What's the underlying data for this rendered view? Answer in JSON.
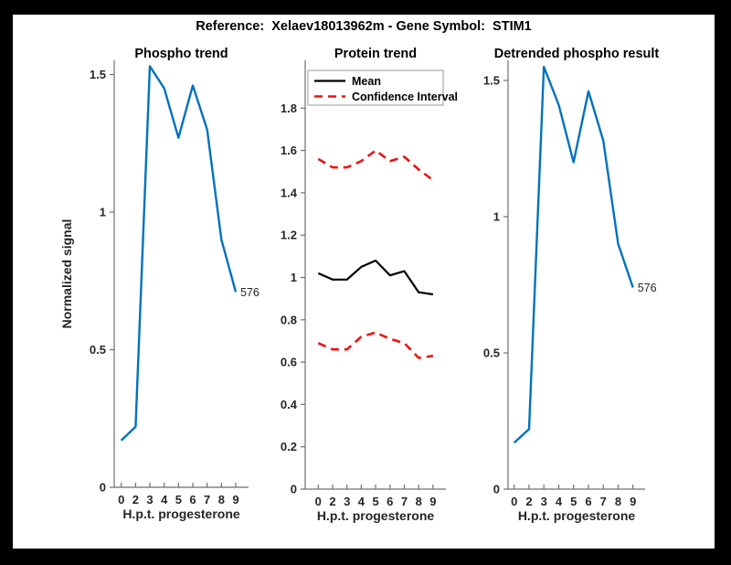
{
  "figure": {
    "title": "Reference:  Xelaev18013962m - Gene Symbol:  STIM1",
    "frame_color": "#000000",
    "canvas_color": "#ffffff"
  },
  "colors": {
    "phospho_line": "#0072BD",
    "mean_line": "#000000",
    "confidence_line": "#EE1111",
    "axis": "#6E6E6E",
    "tick_text": "#262626"
  },
  "chart_data": [
    {
      "type": "line",
      "title": "Phospho trend",
      "xlabel": "H.p.t. progesterone",
      "ylabel": "Normalized signal",
      "x_tick_labels": [
        "0",
        "2",
        "3",
        "4",
        "5",
        "6",
        "7",
        "8",
        "9"
      ],
      "y_ticks": [
        0,
        0.5,
        1,
        1.5
      ],
      "y_tick_labels": [
        "0",
        "0.5",
        "1",
        "1.5"
      ],
      "ylim": [
        0,
        1.55
      ],
      "grid": false,
      "legend": null,
      "series": [
        {
          "name": "phospho-signal",
          "color": "#0072BD",
          "style": "solid",
          "values": [
            0.17,
            0.22,
            1.53,
            1.45,
            1.27,
            1.46,
            1.3,
            0.9,
            0.71
          ]
        }
      ],
      "annotation": {
        "text": "576",
        "at": "last-point"
      }
    },
    {
      "type": "line",
      "title": "Protein trend",
      "xlabel": "H.p.t. progesterone",
      "ylabel": "",
      "x_tick_labels": [
        "0",
        "2",
        "3",
        "4",
        "5",
        "6",
        "7",
        "8",
        "9"
      ],
      "y_ticks": [
        0,
        0.2,
        0.4,
        0.6,
        0.8,
        1,
        1.2,
        1.4,
        1.6,
        1.8
      ],
      "y_tick_labels": [
        "0",
        "0.2",
        "0.4",
        "0.6",
        "0.8",
        "1",
        "1.2",
        "1.4",
        "1.6",
        "1.8"
      ],
      "ylim": [
        0,
        2.02
      ],
      "grid": false,
      "legend": {
        "position": "northwest",
        "entries": [
          "Mean",
          "Confidence Interval"
        ]
      },
      "series": [
        {
          "name": "mean",
          "color": "#000000",
          "style": "solid",
          "values": [
            1.02,
            0.99,
            0.99,
            1.05,
            1.08,
            1.01,
            1.03,
            0.93,
            0.92
          ]
        },
        {
          "name": "ci-upper",
          "color": "#EE1111",
          "style": "dashed",
          "values": [
            1.56,
            1.52,
            1.52,
            1.55,
            1.6,
            1.55,
            1.57,
            1.51,
            1.46
          ]
        },
        {
          "name": "ci-lower",
          "color": "#EE1111",
          "style": "dashed",
          "values": [
            0.69,
            0.66,
            0.66,
            0.72,
            0.74,
            0.71,
            0.69,
            0.62,
            0.63
          ]
        }
      ],
      "annotation": null
    },
    {
      "type": "line",
      "title": "Detrended phospho result",
      "xlabel": "H.p.t. progesterone",
      "ylabel": "",
      "x_tick_labels": [
        "0",
        "2",
        "3",
        "4",
        "5",
        "6",
        "7",
        "8",
        "9"
      ],
      "y_ticks": [
        0,
        0.5,
        1,
        1.5
      ],
      "y_tick_labels": [
        "0",
        "0.5",
        "1",
        "1.5"
      ],
      "ylim": [
        0,
        1.57
      ],
      "grid": false,
      "legend": null,
      "series": [
        {
          "name": "detrended-phospho",
          "color": "#0072BD",
          "style": "solid",
          "values": [
            0.17,
            0.22,
            1.55,
            1.41,
            1.2,
            1.46,
            1.28,
            0.9,
            0.74
          ]
        }
      ],
      "annotation": {
        "text": "576",
        "at": "last-point"
      }
    }
  ]
}
